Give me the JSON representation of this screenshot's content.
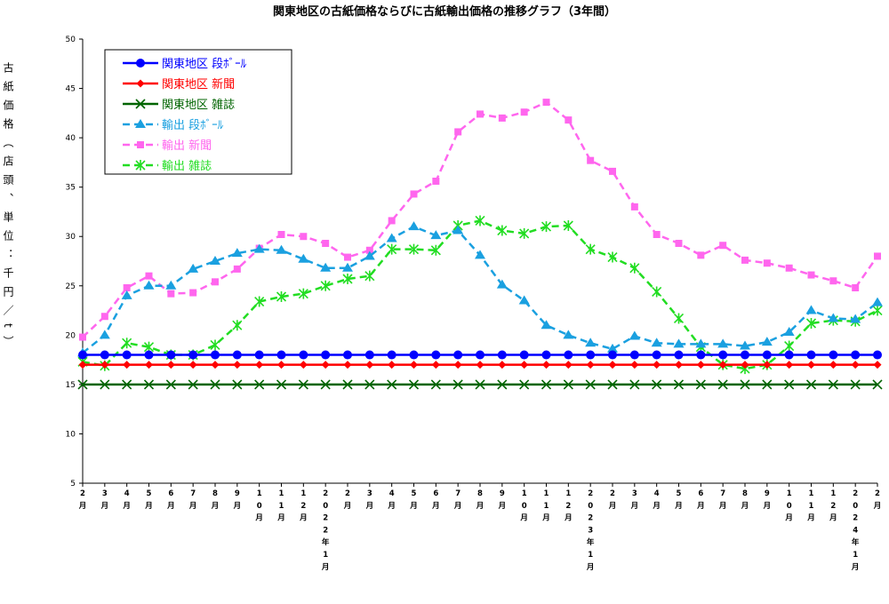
{
  "chart_data": {
    "type": "line",
    "title": "関東地区の古紙価格ならびに古紙輸出価格の推移グラフ（3年間）",
    "ylabel": "古紙価格（店頭、単位：千円／t）",
    "ylim": [
      5,
      50
    ],
    "yticks": [
      "5",
      "10",
      "15",
      "20",
      "25",
      "30",
      "35",
      "40",
      "45",
      "50"
    ],
    "categories": [
      "2月",
      "3月",
      "4月",
      "5月",
      "6月",
      "7月",
      "8月",
      "9月",
      "10月",
      "11月",
      "12月",
      "2022年1月",
      "2月",
      "3月",
      "4月",
      "5月",
      "6月",
      "7月",
      "8月",
      "9月",
      "10月",
      "11月",
      "12月",
      "2023年1月",
      "2月",
      "3月",
      "4月",
      "5月",
      "6月",
      "7月",
      "8月",
      "9月",
      "10月",
      "11月",
      "12月",
      "2024年1月",
      "2月"
    ],
    "legend_position": "top-left",
    "grid": false,
    "series": [
      {
        "name": "関東地区 段ﾎﾞｰﾙ",
        "color": "#0000ff",
        "dashed": false,
        "marker": "circle",
        "values": [
          18,
          18,
          18,
          18,
          18,
          18,
          18,
          18,
          18,
          18,
          18,
          18,
          18,
          18,
          18,
          18,
          18,
          18,
          18,
          18,
          18,
          18,
          18,
          18,
          18,
          18,
          18,
          18,
          18,
          18,
          18,
          18,
          18,
          18,
          18,
          18,
          18
        ]
      },
      {
        "name": "関東地区 新聞",
        "color": "#ff0000",
        "dashed": false,
        "marker": "diamond",
        "values": [
          17,
          17,
          17,
          17,
          17,
          17,
          17,
          17,
          17,
          17,
          17,
          17,
          17,
          17,
          17,
          17,
          17,
          17,
          17,
          17,
          17,
          17,
          17,
          17,
          17,
          17,
          17,
          17,
          17,
          17,
          17,
          17,
          17,
          17,
          17,
          17,
          17
        ]
      },
      {
        "name": "関東地区 雑誌",
        "color": "#006400",
        "dashed": false,
        "marker": "x",
        "values": [
          15,
          15,
          15,
          15,
          15,
          15,
          15,
          15,
          15,
          15,
          15,
          15,
          15,
          15,
          15,
          15,
          15,
          15,
          15,
          15,
          15,
          15,
          15,
          15,
          15,
          15,
          15,
          15,
          15,
          15,
          15,
          15,
          15,
          15,
          15,
          15,
          15
        ]
      },
      {
        "name": "輸出 段ﾎﾞｰﾙ",
        "color": "#1aa0e0",
        "dashed": true,
        "marker": "triangle",
        "values": [
          18.2,
          20,
          24,
          25,
          25,
          26.7,
          27.5,
          28.3,
          28.7,
          28.6,
          27.7,
          26.8,
          26.8,
          28,
          29.8,
          31,
          30.1,
          30.6,
          28.1,
          25.1,
          23.5,
          21,
          20,
          19.2,
          18.6,
          19.9,
          19.2,
          19.1,
          19.1,
          19.1,
          18.9,
          19.3,
          20.3,
          22.5,
          21.7,
          21.6,
          23.3
        ]
      },
      {
        "name": "輸出 新聞",
        "color": "#ff66ee",
        "dashed": true,
        "marker": "square",
        "values": [
          19.8,
          21.9,
          24.8,
          26,
          24.2,
          24.3,
          25.4,
          26.7,
          28.8,
          30.2,
          30,
          29.3,
          27.9,
          28.6,
          31.6,
          34.3,
          35.6,
          40.6,
          42.4,
          42,
          42.6,
          43.6,
          41.8,
          37.7,
          36.6,
          33,
          30.2,
          29.3,
          28.1,
          29.1,
          27.6,
          27.3,
          26.8,
          26.1,
          25.5,
          24.8,
          28
        ]
      },
      {
        "name": "輸出 雑誌",
        "color": "#22dd22",
        "dashed": true,
        "marker": "asterisk",
        "values": [
          17.3,
          16.9,
          19.2,
          18.8,
          18,
          18,
          19,
          21,
          23.4,
          23.9,
          24.2,
          25,
          25.7,
          26,
          28.7,
          28.7,
          28.6,
          31.1,
          31.6,
          30.6,
          30.3,
          31,
          31.1,
          28.7,
          27.9,
          26.8,
          24.4,
          21.7,
          18.8,
          17,
          16.6,
          17,
          18.9,
          21.2,
          21.5,
          21.4,
          22.5
        ]
      }
    ]
  }
}
